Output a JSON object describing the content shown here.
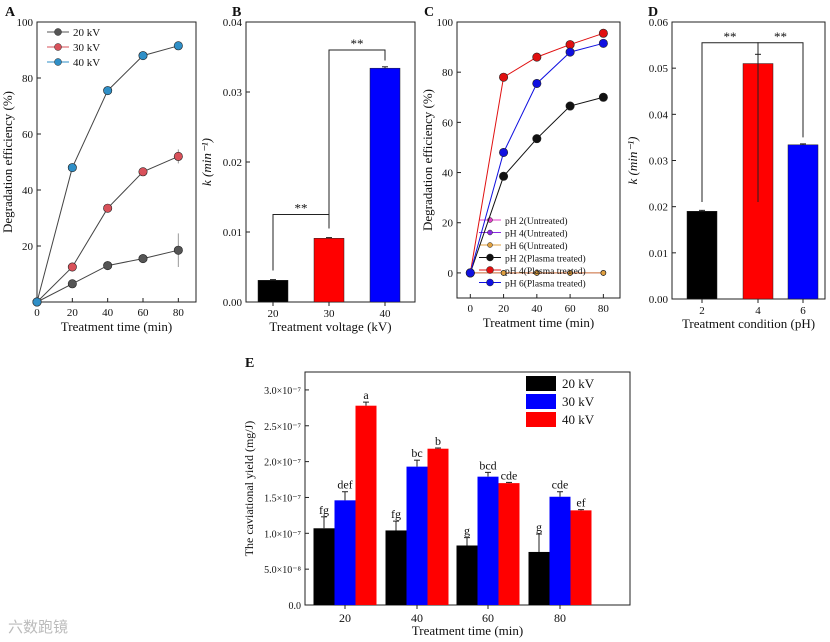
{
  "chart_data": [
    {
      "id": "A",
      "panel_label": "A",
      "type": "line",
      "xlabel": "Treatment time (min)",
      "ylabel": "Degradation efficiency (%)",
      "xlim": [
        0,
        90
      ],
      "ylim": [
        0,
        100
      ],
      "xticks": [
        0,
        20,
        40,
        60,
        80
      ],
      "yticks": [
        20,
        40,
        60,
        80,
        100
      ],
      "ytick_labels": [
        "20",
        "40",
        "60",
        "80",
        "100"
      ],
      "legend_position": "top-left",
      "x": [
        0,
        20,
        40,
        60,
        80
      ],
      "series": [
        {
          "name": "20 kV",
          "color": "#555555",
          "values": [
            0,
            6.5,
            13,
            15.5,
            18.5
          ],
          "errors": [
            0,
            0.8,
            1,
            1.5,
            6
          ]
        },
        {
          "name": "30 kV",
          "color": "#d9515a",
          "values": [
            0,
            12.5,
            33.5,
            46.5,
            52
          ],
          "errors": [
            0,
            0.5,
            0.8,
            1,
            2.5
          ]
        },
        {
          "name": "40 kV",
          "color": "#2f8fc7",
          "values": [
            0,
            48,
            75.5,
            88,
            91.5
          ],
          "errors": [
            0,
            0.5,
            0.5,
            0.5,
            0.5
          ]
        }
      ]
    },
    {
      "id": "B",
      "panel_label": "B",
      "type": "bar",
      "xlabel": "Treatment voltage (kV)",
      "ylabel": "k (min⁻¹)",
      "categories": [
        "20",
        "30",
        "40"
      ],
      "values": [
        0.0031,
        0.0091,
        0.0334
      ],
      "errors": [
        0.0001,
        0.0001,
        0.0002
      ],
      "colors": [
        "#000000",
        "#ff0000",
        "#0000ff"
      ],
      "ylim": [
        0,
        0.04
      ],
      "yticks": [
        0,
        0.01,
        0.02,
        0.03,
        0.04
      ],
      "ytick_labels": [
        "0.00",
        "0.01",
        "0.02",
        "0.03",
        "0.04"
      ],
      "annotations": [
        {
          "text": "**",
          "between": [
            0,
            1
          ]
        },
        {
          "text": "**",
          "between": [
            1,
            2
          ]
        }
      ]
    },
    {
      "id": "C",
      "panel_label": "C",
      "type": "line",
      "xlabel": "Treatment time (min)",
      "ylabel": "Degradation efficiency (%)",
      "xlim": [
        -8,
        90
      ],
      "ylim": [
        -10,
        100
      ],
      "xticks": [
        0,
        20,
        40,
        60,
        80
      ],
      "yticks": [
        0,
        20,
        40,
        60,
        80,
        100
      ],
      "ytick_labels": [
        "0",
        "20",
        "40",
        "60",
        "80",
        "100"
      ],
      "legend_position": "bottom-right",
      "x": [
        0,
        20,
        40,
        60,
        80
      ],
      "series": [
        {
          "name": "pH 2(Untreated)",
          "color": "#e040c8",
          "values": [
            0,
            0,
            0,
            0,
            0
          ]
        },
        {
          "name": "pH 4(Untreated)",
          "color": "#8a2be2",
          "values": [
            0,
            0,
            0,
            0,
            0
          ]
        },
        {
          "name": "pH 6(Untreated)",
          "color": "#e0a040",
          "values": [
            0,
            0,
            0,
            0,
            0
          ]
        },
        {
          "name": "pH 2(Plasma treated)",
          "color": "#111111",
          "values": [
            0,
            38.5,
            53.5,
            66.5,
            70
          ]
        },
        {
          "name": "pH 4(Plasma treated)",
          "color": "#e01010",
          "values": [
            0,
            78,
            86,
            91,
            95.5
          ]
        },
        {
          "name": "pH 6(Plasma treated)",
          "color": "#1010e0",
          "values": [
            0,
            48,
            75.5,
            88,
            91.5
          ]
        }
      ]
    },
    {
      "id": "D",
      "panel_label": "D",
      "type": "bar",
      "xlabel": "Treatment condition (pH)",
      "ylabel": "k (min⁻¹)",
      "categories": [
        "2",
        "4",
        "6"
      ],
      "values": [
        0.019,
        0.051,
        0.0334
      ],
      "errors": [
        0.0002,
        0.002,
        0.0002
      ],
      "colors": [
        "#000000",
        "#ff0000",
        "#0000ff"
      ],
      "ylim": [
        0,
        0.06
      ],
      "yticks": [
        0,
        0.01,
        0.02,
        0.03,
        0.04,
        0.05,
        0.06
      ],
      "ytick_labels": [
        "0.00",
        "0.01",
        "0.02",
        "0.03",
        "0.04",
        "0.05",
        "0.06"
      ],
      "annotations": [
        {
          "text": "**",
          "between": [
            0,
            1
          ]
        },
        {
          "text": "**",
          "between": [
            1,
            2
          ]
        }
      ]
    },
    {
      "id": "E",
      "panel_label": "E",
      "type": "bar",
      "xlabel": "Treatment time (min)",
      "ylabel": "The caviational yield (mg/J)",
      "categories": [
        "20",
        "40",
        "60",
        "80"
      ],
      "ylim": [
        0,
        3.25e-07
      ],
      "yticks": [
        0,
        5e-08,
        1e-07,
        1.5e-07,
        2e-07,
        2.5e-07,
        3e-07
      ],
      "ytick_labels": [
        "0.0",
        "5.0×10⁻⁸",
        "1.0×10⁻⁷",
        "1.5×10⁻⁷",
        "2.0×10⁻⁷",
        "2.5×10⁻⁷",
        "3.0×10⁻⁷"
      ],
      "legend_position": "top-right",
      "series": [
        {
          "name": "20 kV",
          "color": "#000000",
          "values": [
            1.07e-07,
            1.04e-07,
            8.3e-08,
            7.4e-08
          ],
          "errors": [
            1.6e-08,
            1.3e-08,
            1.1e-08,
            2.5e-08
          ],
          "letters": [
            "fg",
            "fg",
            "g",
            "g"
          ]
        },
        {
          "name": "30 kV",
          "color": "#0000ff",
          "values": [
            1.46e-07,
            1.93e-07,
            1.79e-07,
            1.51e-07
          ],
          "errors": [
            1.2e-08,
            9e-09,
            6e-09,
            7e-09
          ],
          "letters": [
            "def",
            "bc",
            "bcd",
            "cde"
          ]
        },
        {
          "name": "40 kV",
          "color": "#ff0000",
          "values": [
            2.78e-07,
            2.18e-07,
            1.7e-07,
            1.32e-07
          ],
          "errors": [
            5e-09,
            1e-09,
            1e-09,
            1e-09
          ],
          "letters": [
            "a",
            "b",
            "cde",
            "ef"
          ]
        }
      ]
    }
  ],
  "watermark": "六数跑镜"
}
